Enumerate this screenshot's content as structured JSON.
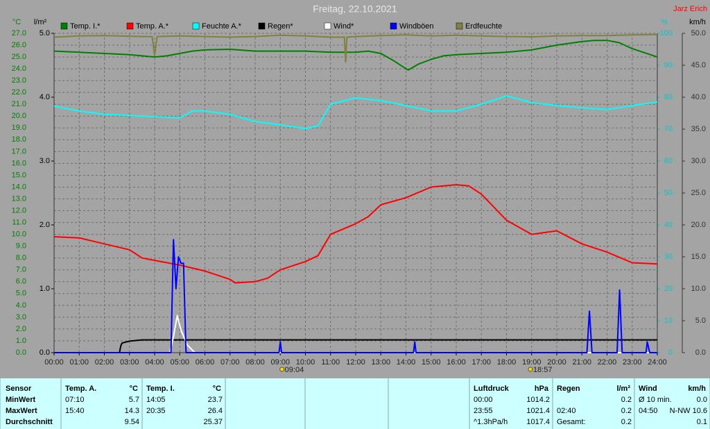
{
  "chart_data": {
    "type": "line",
    "title": "Freitag, 22.10.2021",
    "author": "Jarz Erich",
    "y_unit": "°C",
    "y3_unit": "l/m²",
    "y2_unit": "%",
    "y4_unit": "km/h",
    "grid": true,
    "xlim": [
      0,
      24
    ],
    "xticks": [
      {
        "value": 0,
        "label": "00:00"
      },
      {
        "value": 1,
        "label": "01:00"
      },
      {
        "value": 2,
        "label": "02:00"
      },
      {
        "value": 3,
        "label": "03:00"
      },
      {
        "value": 4,
        "label": "04:00"
      },
      {
        "value": 5,
        "label": "05:00"
      },
      {
        "value": 6,
        "label": "06:00"
      },
      {
        "value": 7,
        "label": "07:00"
      },
      {
        "value": 8,
        "label": "08:00"
      },
      {
        "value": 9,
        "label": "09:00"
      },
      {
        "value": 10,
        "label": "10:00"
      },
      {
        "value": 11,
        "label": "11:00"
      },
      {
        "value": 12,
        "label": "12:00"
      },
      {
        "value": 13,
        "label": "13:00"
      },
      {
        "value": 14,
        "label": "14:00"
      },
      {
        "value": 15,
        "label": "15:00"
      },
      {
        "value": 16,
        "label": "16:00"
      },
      {
        "value": 17,
        "label": "17:00"
      },
      {
        "value": 18,
        "label": "18:00"
      },
      {
        "value": 19,
        "label": "19:00"
      },
      {
        "value": 20,
        "label": "20:00"
      },
      {
        "value": 21,
        "label": "21:00"
      },
      {
        "value": 22,
        "label": "22:00"
      },
      {
        "value": 23,
        "label": "23:00"
      },
      {
        "value": 24,
        "label": "24:00"
      }
    ],
    "ylim": [
      0,
      27
    ],
    "yticks": [
      {
        "value": 0,
        "label": "0.0"
      },
      {
        "value": 1,
        "label": "1.0"
      },
      {
        "value": 2,
        "label": "2.0"
      },
      {
        "value": 3,
        "label": "3.0"
      },
      {
        "value": 4,
        "label": "4.0"
      },
      {
        "value": 5,
        "label": "5.0"
      },
      {
        "value": 6,
        "label": "6.0"
      },
      {
        "value": 7,
        "label": "7.0"
      },
      {
        "value": 8,
        "label": "8.0"
      },
      {
        "value": 9,
        "label": "9.0"
      },
      {
        "value": 10,
        "label": "10.0"
      },
      {
        "value": 11,
        "label": "11.0"
      },
      {
        "value": 12,
        "label": "12.0"
      },
      {
        "value": 13,
        "label": "13.0"
      },
      {
        "value": 14,
        "label": "14.0"
      },
      {
        "value": 15,
        "label": "15.0"
      },
      {
        "value": 16,
        "label": "16.0"
      },
      {
        "value": 17,
        "label": "17.0"
      },
      {
        "value": 18,
        "label": "18.0"
      },
      {
        "value": 19,
        "label": "19.0"
      },
      {
        "value": 20,
        "label": "20.0"
      },
      {
        "value": 21,
        "label": "21.0"
      },
      {
        "value": 22,
        "label": "22.0"
      },
      {
        "value": 23,
        "label": "23.0"
      },
      {
        "value": 24,
        "label": "24.0"
      },
      {
        "value": 25,
        "label": "25.0"
      },
      {
        "value": 26,
        "label": "26.0"
      },
      {
        "value": 27,
        "label": "27.0"
      }
    ],
    "y3lim": [
      0,
      5
    ],
    "y3ticks": [
      {
        "value": 0,
        "label": "0.0"
      },
      {
        "value": 1,
        "label": "1.0"
      },
      {
        "value": 2,
        "label": "2.0"
      },
      {
        "value": 3,
        "label": "3.0"
      },
      {
        "value": 4,
        "label": "4.0"
      },
      {
        "value": 5,
        "label": "5.0"
      }
    ],
    "y2lim": [
      0,
      100
    ],
    "y2ticks": [
      0,
      10,
      20,
      30,
      40,
      50,
      60,
      70,
      80,
      90,
      100
    ],
    "y4lim": [
      0,
      50
    ],
    "y4ticks": [
      {
        "value": 0,
        "label": "0.0"
      },
      {
        "value": 5,
        "label": "5.0"
      },
      {
        "value": 10,
        "label": "10.0"
      },
      {
        "value": 15,
        "label": "15.0"
      },
      {
        "value": 20,
        "label": "20.0"
      },
      {
        "value": 25,
        "label": "25.0"
      },
      {
        "value": 30,
        "label": "30.0"
      },
      {
        "value": 35,
        "label": "35.0"
      },
      {
        "value": 40,
        "label": "40.0"
      },
      {
        "value": 45,
        "label": "45.0"
      },
      {
        "value": 50,
        "label": "50.0"
      }
    ],
    "annotations": [
      {
        "x": 9.0667,
        "label": "09:04"
      },
      {
        "x": 18.95,
        "label": "18:57"
      }
    ],
    "series": [
      {
        "name": "Temp. I.*",
        "color": "#008000",
        "axis": "y",
        "x": [
          0,
          1,
          2,
          3,
          4,
          4.5,
          5,
          5.5,
          6,
          7,
          8,
          9,
          10,
          11,
          12,
          12.5,
          13,
          13.5,
          14,
          14.1,
          14.5,
          15,
          15.5,
          16,
          17,
          18,
          19,
          20,
          21,
          21.5,
          22,
          22.5,
          23,
          24
        ],
        "values": [
          25.5,
          25.4,
          25.3,
          25.2,
          25.0,
          25.1,
          25.3,
          25.5,
          25.6,
          25.65,
          25.5,
          25.5,
          25.5,
          25.4,
          25.4,
          25.5,
          25.3,
          24.7,
          24.0,
          23.9,
          24.4,
          24.8,
          25.1,
          25.2,
          25.3,
          25.4,
          25.6,
          26.0,
          26.3,
          26.4,
          26.4,
          26.2,
          25.7,
          25.0
        ]
      },
      {
        "name": "Temp. A.*",
        "color": "#ff0000",
        "axis": "y",
        "x": [
          0,
          1,
          2,
          3,
          3.5,
          4,
          4.5,
          5,
          6,
          7,
          7.2,
          8,
          8.5,
          9,
          10,
          10.5,
          11,
          12,
          12.5,
          13,
          14,
          15,
          16,
          16.5,
          17,
          18,
          19,
          20,
          21,
          22,
          23,
          24
        ],
        "values": [
          9.8,
          9.7,
          9.2,
          8.7,
          8.0,
          7.8,
          7.6,
          7.4,
          6.9,
          6.2,
          5.9,
          6.0,
          6.3,
          7.0,
          7.7,
          8.2,
          10.0,
          10.9,
          11.5,
          12.5,
          13.1,
          14.0,
          14.2,
          14.1,
          13.4,
          11.2,
          10.0,
          10.3,
          9.2,
          8.5,
          7.6,
          7.5
        ]
      },
      {
        "name": "Feuchte A.*",
        "color": "#00ffff",
        "axis": "y2",
        "x": [
          0,
          1,
          2,
          3,
          4,
          5,
          5.5,
          6,
          7,
          8,
          9,
          10,
          10.5,
          11,
          12,
          13,
          14,
          15,
          16,
          17,
          18,
          19,
          20,
          21,
          22,
          23,
          24
        ],
        "values": [
          77.2,
          75.7,
          74.6,
          74.3,
          73.9,
          73.5,
          75.7,
          75.7,
          74.6,
          72.4,
          71.3,
          70.2,
          71.0,
          77.8,
          79.8,
          78.9,
          77.4,
          75.7,
          75.7,
          77.8,
          80.4,
          78.3,
          77.4,
          76.7,
          76.1,
          77.4,
          78.5
        ]
      },
      {
        "name": "Regen*",
        "color": "#000000",
        "axis": "y3",
        "x": [
          0,
          2.6,
          2.65,
          2.7,
          3.0,
          3.5,
          24
        ],
        "values": [
          0,
          0,
          0.1,
          0.15,
          0.18,
          0.2,
          0.2
        ]
      },
      {
        "name": "Wind*",
        "color": "#ffffff",
        "axis": "y4",
        "x": [
          0,
          4.6,
          4.75,
          4.9,
          5.05,
          5.3,
          5.6,
          24
        ],
        "values": [
          0,
          0,
          2.5,
          5.8,
          3.5,
          1.2,
          0,
          0
        ]
      },
      {
        "name": "Windböen",
        "color": "#0000ff",
        "axis": "y4",
        "x": [
          0,
          4.65,
          4.75,
          4.85,
          4.95,
          5.05,
          5.15,
          5.25,
          8.95,
          9.0,
          9.05,
          14.3,
          14.35,
          14.4,
          21.2,
          21.3,
          21.4,
          22.4,
          22.5,
          22.6,
          23.55,
          23.6,
          23.7,
          24
        ],
        "values": [
          0,
          0,
          17.7,
          10,
          15,
          14,
          14,
          0,
          0,
          1.7,
          0,
          0,
          1.7,
          0,
          0,
          6.5,
          0,
          0,
          9.8,
          0,
          0,
          1.7,
          0,
          0
        ]
      },
      {
        "name": "Erdfeuchte",
        "color": "#808040",
        "axis": "y2",
        "x": [
          0,
          1,
          2,
          3,
          3.5,
          3.9,
          4,
          4.1,
          5,
          6,
          7,
          8,
          9,
          10,
          11,
          11.55,
          11.6,
          11.65,
          12,
          13,
          14,
          15,
          16,
          17,
          18,
          19,
          20,
          21,
          22,
          23,
          24
        ],
        "values": [
          98.8,
          99.2,
          99.3,
          99.1,
          99,
          99,
          93,
          99,
          99.2,
          99,
          98.8,
          99,
          99.4,
          99.2,
          98.8,
          98.8,
          91,
          98.8,
          99,
          99.3,
          99.5,
          99.2,
          99.4,
          99.2,
          99,
          98.9,
          99.2,
          99.3,
          99.3,
          99.5,
          99.6
        ]
      }
    ]
  },
  "stats": {
    "sensor": {
      "header": "Sensor",
      "rows": [
        "MinWert",
        "MaxWert",
        "Durchschnitt"
      ]
    },
    "columns": [
      {
        "header": "Temp. A.",
        "unit": "°C",
        "rows": [
          {
            "time": "07:10",
            "value": "5.7"
          },
          {
            "time": "15:40",
            "value": "14.3"
          },
          {
            "value": "9.54"
          }
        ]
      },
      {
        "header": "Temp. I.",
        "unit": "°C",
        "rows": [
          {
            "time": "14:05",
            "value": "23.7"
          },
          {
            "time": "20:35",
            "value": "26.4"
          },
          {
            "value": "25.37"
          }
        ]
      },
      {
        "header": "Luftdruck",
        "unit": "hPa",
        "rows": [
          {
            "time": "00:00",
            "value": "1014.2"
          },
          {
            "time": "23:55",
            "value": "1021.4"
          },
          {
            "time": "^1.3hPa/h",
            "value": "1017.4"
          }
        ]
      },
      {
        "header": "Regen",
        "unit": "l/m²",
        "rows": [
          {
            "value": "0.2"
          },
          {
            "time": "02:40",
            "value": "0.2"
          },
          {
            "time": "Gesamt:",
            "value": "0.2"
          }
        ]
      },
      {
        "header": "Wind",
        "unit": "km/h",
        "rows": [
          {
            "time": "Ø 10 min.",
            "value": "0.0"
          },
          {
            "time": "04:50",
            "value": "N-NW 10.6"
          },
          {
            "value": "0.1"
          }
        ]
      }
    ]
  }
}
